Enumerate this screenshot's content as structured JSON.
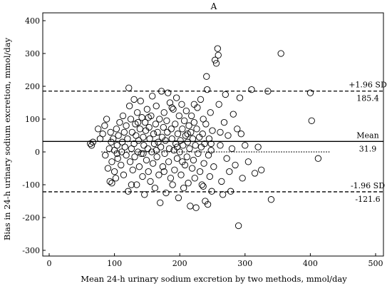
{
  "chart_data": {
    "type": "scatter",
    "title": "A",
    "xlabel": "Mean 24-h urinary sodium excretion by two methods, mmol/day",
    "ylabel": "Bias in 24-h urinary sodium excretion, mmol/day",
    "xlim": [
      0,
      500
    ],
    "ylim": [
      -300,
      400
    ],
    "xticks": [
      0,
      100,
      200,
      300,
      400,
      500
    ],
    "yticks": [
      -300,
      -200,
      -100,
      0,
      100,
      200,
      300,
      400
    ],
    "grid": false,
    "reference_lines": [
      {
        "name": "+1.96 SD",
        "value": 185.4,
        "value_label": "185.4",
        "style": "dashed"
      },
      {
        "name": "Mean",
        "value": 31.9,
        "value_label": "31.9",
        "style": "solid"
      },
      {
        "name": "-1.96 SD",
        "value": -121.6,
        "value_label": "-121.6",
        "style": "dashed"
      }
    ],
    "zero_line": {
      "value": 0,
      "style": "dotted",
      "x_range": [
        80,
        430
      ]
    },
    "points": [
      [
        63,
        25
      ],
      [
        65,
        20
      ],
      [
        67,
        30
      ],
      [
        75,
        70
      ],
      [
        78,
        40
      ],
      [
        82,
        55
      ],
      [
        85,
        80
      ],
      [
        86,
        -10
      ],
      [
        88,
        100
      ],
      [
        90,
        -50
      ],
      [
        92,
        10
      ],
      [
        93,
        -90
      ],
      [
        94,
        60
      ],
      [
        95,
        30
      ],
      [
        96,
        -30
      ],
      [
        98,
        40
      ],
      [
        100,
        -60
      ],
      [
        100,
        5
      ],
      [
        102,
        -80
      ],
      [
        103,
        70
      ],
      [
        104,
        20
      ],
      [
        105,
        -20
      ],
      [
        106,
        50
      ],
      [
        108,
        90
      ],
      [
        110,
        -40
      ],
      [
        111,
        0
      ],
      [
        112,
        30
      ],
      [
        113,
        110
      ],
      [
        114,
        -70
      ],
      [
        115,
        60
      ],
      [
        116,
        15
      ],
      [
        118,
        -10
      ],
      [
        118,
        80
      ],
      [
        120,
        40
      ],
      [
        121,
        -120
      ],
      [
        122,
        195
      ],
      [
        123,
        140
      ],
      [
        124,
        -30
      ],
      [
        125,
        100
      ],
      [
        126,
        10
      ],
      [
        127,
        60
      ],
      [
        128,
        -55
      ],
      [
        130,
        25
      ],
      [
        130,
        160
      ],
      [
        131,
        -15
      ],
      [
        132,
        85
      ],
      [
        133,
        50
      ],
      [
        134,
        -100
      ],
      [
        135,
        120
      ],
      [
        136,
        0
      ],
      [
        137,
        35
      ],
      [
        138,
        -45
      ],
      [
        139,
        70
      ],
      [
        140,
        155
      ],
      [
        141,
        -5
      ],
      [
        142,
        105
      ],
      [
        143,
        -75
      ],
      [
        144,
        45
      ],
      [
        145,
        20
      ],
      [
        146,
        -130
      ],
      [
        147,
        90
      ],
      [
        148,
        65
      ],
      [
        149,
        -25
      ],
      [
        150,
        130
      ],
      [
        151,
        10
      ],
      [
        152,
        -60
      ],
      [
        153,
        75
      ],
      [
        154,
        40
      ],
      [
        155,
        -90
      ],
      [
        156,
        110
      ],
      [
        157,
        0
      ],
      [
        158,
        170
      ],
      [
        159,
        -35
      ],
      [
        160,
        55
      ],
      [
        161,
        25
      ],
      [
        162,
        -110
      ],
      [
        163,
        85
      ],
      [
        164,
        140
      ],
      [
        165,
        -15
      ],
      [
        166,
        60
      ],
      [
        167,
        30
      ],
      [
        168,
        -70
      ],
      [
        169,
        100
      ],
      [
        170,
        -155
      ],
      [
        171,
        15
      ],
      [
        172,
        185
      ],
      [
        173,
        45
      ],
      [
        174,
        -45
      ],
      [
        175,
        75
      ],
      [
        176,
        120
      ],
      [
        177,
        -5
      ],
      [
        178,
        35
      ],
      [
        179,
        -125
      ],
      [
        180,
        95
      ],
      [
        181,
        60
      ],
      [
        182,
        180
      ],
      [
        183,
        -30
      ],
      [
        184,
        10
      ],
      [
        185,
        150
      ],
      [
        186,
        -80
      ],
      [
        187,
        70
      ],
      [
        188,
        40
      ],
      [
        189,
        -100
      ],
      [
        190,
        130
      ],
      [
        191,
        5
      ],
      [
        192,
        -55
      ],
      [
        193,
        85
      ],
      [
        194,
        25
      ],
      [
        195,
        165
      ],
      [
        196,
        -20
      ],
      [
        197,
        55
      ],
      [
        198,
        -140
      ],
      [
        199,
        110
      ],
      [
        200,
        0
      ],
      [
        201,
        35
      ],
      [
        202,
        -70
      ],
      [
        203,
        145
      ],
      [
        204,
        70
      ],
      [
        205,
        20
      ],
      [
        206,
        -110
      ],
      [
        207,
        95
      ],
      [
        208,
        -40
      ],
      [
        209,
        50
      ],
      [
        210,
        125
      ],
      [
        211,
        -15
      ],
      [
        212,
        30
      ],
      [
        213,
        -95
      ],
      [
        214,
        80
      ],
      [
        215,
        10
      ],
      [
        216,
        -165
      ],
      [
        217,
        60
      ],
      [
        218,
        110
      ],
      [
        219,
        -50
      ],
      [
        220,
        40
      ],
      [
        221,
        -25
      ],
      [
        222,
        90
      ],
      [
        223,
        -80
      ],
      [
        224,
        20
      ],
      [
        225,
        -170
      ],
      [
        226,
        70
      ],
      [
        227,
        135
      ],
      [
        228,
        -5
      ],
      [
        230,
        45
      ],
      [
        231,
        -60
      ],
      [
        232,
        160
      ],
      [
        233,
        15
      ],
      [
        234,
        -100
      ],
      [
        235,
        55
      ],
      [
        236,
        100
      ],
      [
        237,
        -35
      ],
      [
        238,
        25
      ],
      [
        239,
        -150
      ],
      [
        240,
        85
      ],
      [
        241,
        230
      ],
      [
        242,
        190
      ],
      [
        243,
        -160
      ],
      [
        244,
        -10
      ],
      [
        245,
        40
      ],
      [
        246,
        -75
      ],
      [
        247,
        120
      ],
      [
        248,
        5
      ],
      [
        249,
        -120
      ],
      [
        250,
        65
      ],
      [
        252,
        -45
      ],
      [
        254,
        280
      ],
      [
        256,
        270
      ],
      [
        258,
        315
      ],
      [
        259,
        295
      ],
      [
        260,
        145
      ],
      [
        262,
        20
      ],
      [
        264,
        -90
      ],
      [
        266,
        -130
      ],
      [
        268,
        90
      ],
      [
        270,
        175
      ],
      [
        272,
        -20
      ],
      [
        274,
        50
      ],
      [
        276,
        -60
      ],
      [
        278,
        -120
      ],
      [
        280,
        10
      ],
      [
        282,
        115
      ],
      [
        285,
        -40
      ],
      [
        288,
        70
      ],
      [
        290,
        -225
      ],
      [
        292,
        165
      ],
      [
        294,
        55
      ],
      [
        296,
        -80
      ],
      [
        300,
        20
      ],
      [
        305,
        -30
      ],
      [
        310,
        190
      ],
      [
        315,
        -65
      ],
      [
        320,
        15
      ],
      [
        325,
        -55
      ],
      [
        335,
        185
      ],
      [
        340,
        -145
      ],
      [
        355,
        300
      ],
      [
        400,
        180
      ],
      [
        402,
        95
      ],
      [
        412,
        -20
      ],
      [
        96,
        -95
      ],
      [
        104,
        -5
      ],
      [
        126,
        -100
      ],
      [
        136,
        90
      ],
      [
        144,
        -5
      ],
      [
        152,
        105
      ],
      [
        164,
        5
      ],
      [
        176,
        -60
      ],
      [
        188,
        135
      ],
      [
        196,
        15
      ],
      [
        204,
        -30
      ],
      [
        212,
        55
      ],
      [
        222,
        145
      ],
      [
        236,
        -105
      ],
      [
        248,
        25
      ],
      [
        262,
        60
      ]
    ]
  }
}
